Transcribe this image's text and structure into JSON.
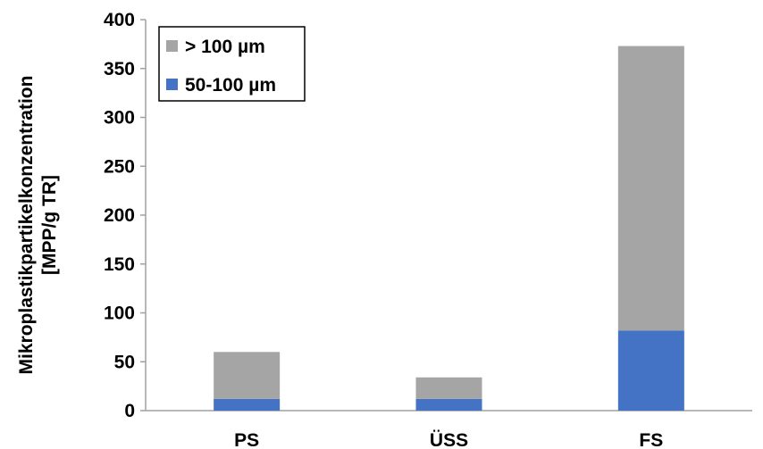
{
  "chart_data": {
    "type": "bar",
    "stacked": true,
    "categories": [
      "PS",
      "ÜSS",
      "FS"
    ],
    "series": [
      {
        "name": "50-100 µm",
        "values": [
          12,
          12,
          82
        ],
        "color": "#4472C4"
      },
      {
        "name": "> 100 µm",
        "values": [
          48,
          22,
          291
        ],
        "color": "#A5A5A5"
      }
    ],
    "ylabel": [
      "Mikroplastikpartikelkonzentration",
      "[MPP/g TR]"
    ],
    "xlabel": "",
    "ylim": [
      0,
      400
    ],
    "yticks": [
      0,
      50,
      100,
      150,
      200,
      250,
      300,
      350,
      400
    ],
    "grid": false,
    "legend": {
      "position": "top-left",
      "entries": [
        "> 100 µm",
        "50-100 µm"
      ],
      "entry_colors": [
        "#A5A5A5",
        "#4472C4"
      ],
      "border_color": "#000000"
    },
    "axis_color": "#A0A0A0"
  }
}
